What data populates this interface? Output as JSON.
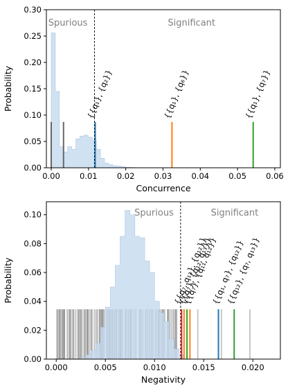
{
  "chart_data": [
    {
      "type": "histogram-with-markers",
      "xlabel": "Concurrence",
      "ylabel": "Probability",
      "xlim": [
        -0.0013,
        0.0615
      ],
      "ylim": [
        0,
        0.3
      ],
      "xticks": [
        "0.00",
        "0.01",
        "0.02",
        "0.03",
        "0.04",
        "0.05",
        "0.06"
      ],
      "xtick_values": [
        0,
        0.01,
        0.02,
        0.03,
        0.04,
        0.05,
        0.06
      ],
      "yticks": [
        "0.00",
        "0.05",
        "0.10",
        "0.15",
        "0.20",
        "0.25",
        "0.30"
      ],
      "ytick_values": [
        0,
        0.05,
        0.1,
        0.15,
        0.2,
        0.25,
        0.3
      ],
      "threshold": 0.0116,
      "region_labels": {
        "left": "Spurious",
        "right": "Significant"
      },
      "histogram": {
        "bin_start": 0.0,
        "bin_width": 0.0011,
        "values": [
          0.256,
          0.145,
          0.04,
          0.03,
          0.04,
          0.035,
          0.055,
          0.06,
          0.062,
          0.058,
          0.052,
          0.035,
          0.018,
          0.009,
          0.006,
          0.004,
          0.003,
          0.002,
          0.001,
          0.0007,
          0.0004,
          0.0002,
          0.0001
        ],
        "color": "#c6dbef"
      },
      "markers": [
        {
          "x": 0.0,
          "height": 0.087,
          "color": "#666666"
        },
        {
          "x": 0.0033,
          "height": 0.087,
          "color": "#666666"
        },
        {
          "x": 0.0118,
          "height": 0.087,
          "color": "#1f77b4"
        },
        {
          "x": 0.0324,
          "height": 0.087,
          "color": "#ff7f0e"
        },
        {
          "x": 0.0542,
          "height": 0.087,
          "color": "#2ca02c"
        }
      ],
      "annotations": [
        {
          "text": "{{q₁}, {q₂}}",
          "x": 0.0118
        },
        {
          "text": "{{q₁}, {q₆}}",
          "x": 0.0324
        },
        {
          "text": "{{q₁}, {q₇}}",
          "x": 0.0542
        }
      ]
    },
    {
      "type": "histogram-with-markers",
      "xlabel": "Negativity",
      "ylabel": "Probability",
      "xlim": [
        -0.001,
        0.0228
      ],
      "ylim": [
        0,
        0.109
      ],
      "xticks": [
        "0.000",
        "0.005",
        "0.010",
        "0.015",
        "0.020"
      ],
      "xtick_values": [
        0,
        0.005,
        0.01,
        0.015,
        0.02
      ],
      "yticks": [
        "0.00",
        "0.02",
        "0.04",
        "0.06",
        "0.08",
        "0.10"
      ],
      "ytick_values": [
        0,
        0.02,
        0.04,
        0.06,
        0.08,
        0.1
      ],
      "threshold": 0.01265,
      "region_labels": {
        "left": "Spurious",
        "right": "Significant"
      },
      "histogram": {
        "bin_start": 0.0025,
        "bin_width": 0.0005,
        "values": [
          0.001,
          0.003,
          0.006,
          0.011,
          0.022,
          0.036,
          0.05,
          0.065,
          0.085,
          0.103,
          0.1,
          0.085,
          0.084,
          0.068,
          0.06,
          0.04,
          0.032,
          0.026,
          0.014,
          0.007,
          0.003
        ],
        "color": "#c6dbef"
      },
      "gray_band": {
        "from": 0.0,
        "to": 0.0125,
        "height": 0.0345
      },
      "markers": [
        {
          "x": 0.01275,
          "height": 0.0345,
          "color": "#d62728"
        },
        {
          "x": 0.013,
          "height": 0.0345,
          "color": "#ff7f0e"
        },
        {
          "x": 0.0133,
          "height": 0.0345,
          "color": "#2ca02c"
        },
        {
          "x": 0.0136,
          "height": 0.0345,
          "color": "#ff7f0e"
        },
        {
          "x": 0.0144,
          "height": 0.0345,
          "color": "#c7c7c7"
        },
        {
          "x": 0.0165,
          "height": 0.0345,
          "color": "#1f77b4"
        },
        {
          "x": 0.0168,
          "height": 0.0345,
          "color": "#c7c7c7"
        },
        {
          "x": 0.0181,
          "height": 0.0345,
          "color": "#2ca02c"
        },
        {
          "x": 0.0197,
          "height": 0.0345,
          "color": "#c7c7c7"
        }
      ],
      "annotations": [
        {
          "text": "{{q₇, q₁₃}, {q₁₂}}",
          "x": 0.0128
        },
        {
          "text": "{{q₇}, {q₁₂, q₁₃}}",
          "x": 0.0133
        },
        {
          "text": "{{q₇}, {q₁₁, q₁₂}}",
          "x": 0.0138
        },
        {
          "text": "{{q₁, q₇}, {q₁₂}}",
          "x": 0.0167
        },
        {
          "text": "{{q₁₂}, {q₇, q₁₃}}",
          "x": 0.0182
        }
      ]
    }
  ]
}
